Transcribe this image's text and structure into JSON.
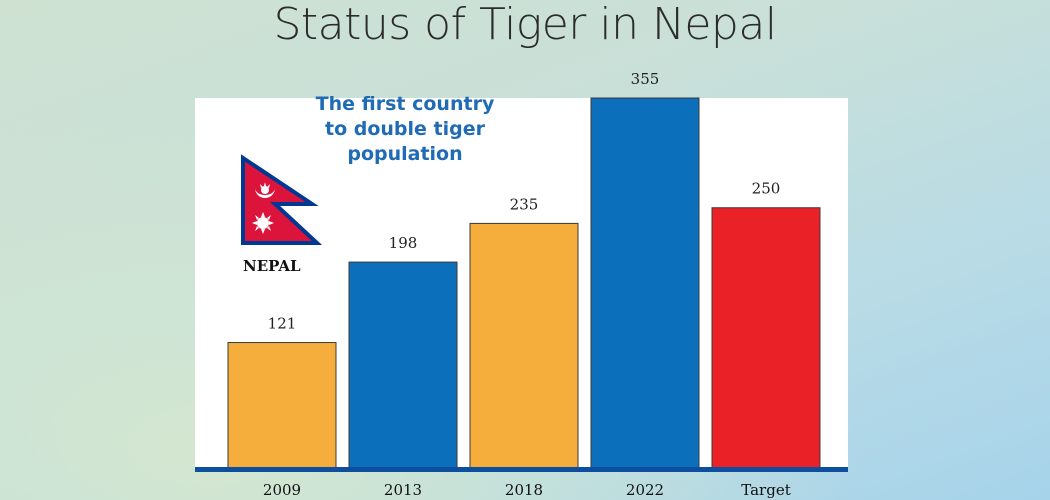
{
  "title": "Status of Tiger in Nepal",
  "subtitle": "The first country to double tiger population",
  "subtitle_lines": [
    "The first country",
    "to double tiger",
    "population"
  ],
  "flag_label": "NEPAL",
  "colors": {
    "orange": "#f5ad3c",
    "blue": "#0b6fbb",
    "red": "#ea2227",
    "baseline": "#0d4f9e",
    "flag_red": "#dc143c",
    "flag_border": "#003893"
  },
  "chart_data": {
    "type": "bar",
    "title": "Status of Tiger in Nepal",
    "categories": [
      "2009",
      "2013",
      "2018",
      "2022",
      "Target"
    ],
    "values": [
      121,
      198,
      235,
      355,
      250
    ],
    "bar_colors": [
      "#f5ad3c",
      "#0b6fbb",
      "#f5ad3c",
      "#0b6fbb",
      "#ea2227"
    ],
    "ylim": [
      0,
      355
    ],
    "grid": false,
    "legend": "none",
    "xlabel": "",
    "ylabel": ""
  }
}
